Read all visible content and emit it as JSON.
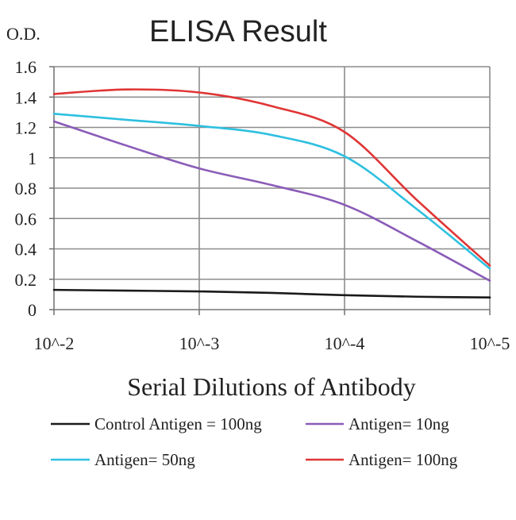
{
  "chart_data": {
    "type": "line",
    "title": "ELISA Result",
    "ylabel": "O.D.",
    "xlabel": "Serial Dilutions of Antibody",
    "categories": [
      "10^-2",
      "10^-3",
      "10^-4",
      "10^-5"
    ],
    "ylim": [
      0,
      1.6
    ],
    "yticks": [
      0,
      0.2,
      0.4,
      0.6,
      0.8,
      1,
      1.2,
      1.4,
      1.6
    ],
    "ytick_labels": [
      "0",
      "0.2",
      "0.4",
      "0.6",
      "0.8",
      "1",
      "1.2",
      "1.4",
      "1.6"
    ],
    "grid": true,
    "legend_position": "bottom",
    "series": [
      {
        "name": "Control Antigen = 100ng",
        "color": "#1a1a1a",
        "x": [
          0,
          0.5,
          1,
          1.5,
          2,
          2.5,
          3
        ],
        "values": [
          0.13,
          0.125,
          0.12,
          0.11,
          0.095,
          0.085,
          0.08
        ]
      },
      {
        "name": "Antigen= 10ng",
        "color": "#8a5cb8",
        "x": [
          0,
          0.5,
          1,
          1.5,
          2,
          2.5,
          3
        ],
        "values": [
          1.24,
          1.08,
          0.93,
          0.82,
          0.69,
          0.45,
          0.19
        ]
      },
      {
        "name": "Antigen= 50ng",
        "color": "#2ec0e0",
        "x": [
          0,
          0.5,
          1,
          1.5,
          2,
          2.5,
          3
        ],
        "values": [
          1.29,
          1.25,
          1.21,
          1.15,
          1.01,
          0.66,
          0.27
        ]
      },
      {
        "name": "Antigen= 100ng",
        "color": "#e03535",
        "x": [
          0,
          0.5,
          1,
          1.5,
          2,
          2.5,
          3
        ],
        "values": [
          1.42,
          1.45,
          1.43,
          1.34,
          1.17,
          0.72,
          0.29
        ]
      }
    ]
  }
}
